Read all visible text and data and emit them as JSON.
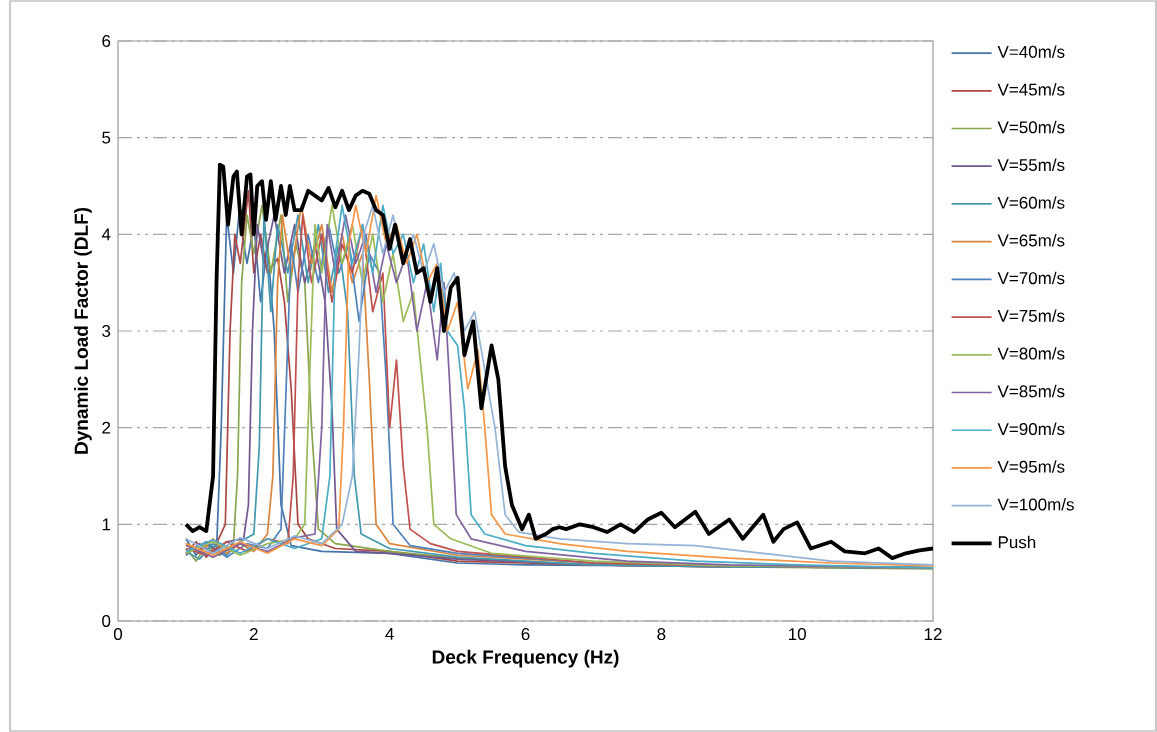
{
  "chart_data": {
    "type": "line",
    "xlabel": "Deck Frequency (Hz)",
    "ylabel": "Dynamic Load Factor (DLF)",
    "xlim": [
      0,
      12
    ],
    "xticks": [
      0,
      2,
      4,
      6,
      8,
      10,
      12
    ],
    "ylim": [
      0,
      6
    ],
    "yticks": [
      0,
      1,
      2,
      3,
      4,
      5,
      6
    ],
    "grid": "y",
    "legend": "right",
    "marker": "none",
    "line_style": "solid",
    "series": [
      {
        "name": "V=40m/s",
        "color": "#4572a7",
        "x": [
          1,
          1.15,
          1.3,
          1.45,
          1.52,
          1.6,
          1.7,
          1.78,
          1.9,
          2.0,
          2.1,
          2.2,
          2.3,
          2.4,
          2.55,
          3.0,
          4.0,
          5.0,
          6.0,
          8.0,
          10.0,
          12.0
        ],
        "values": [
          0.85,
          0.68,
          0.8,
          0.72,
          2.0,
          4.2,
          3.6,
          4.2,
          3.7,
          4.1,
          3.3,
          3.9,
          3.0,
          1.2,
          0.78,
          0.72,
          0.7,
          0.6,
          0.58,
          0.57,
          0.56,
          0.55
        ]
      },
      {
        "name": "V=45m/s",
        "color": "#aa4643",
        "x": [
          1,
          1.15,
          1.3,
          1.45,
          1.58,
          1.65,
          1.72,
          1.8,
          1.92,
          2.0,
          2.1,
          2.2,
          2.35,
          2.45,
          2.55,
          2.65,
          2.8,
          3.2,
          4.0,
          5.0,
          7.0,
          9.0,
          12.0
        ],
        "values": [
          0.7,
          0.82,
          0.66,
          0.8,
          1.0,
          3.0,
          4.0,
          3.7,
          4.45,
          3.6,
          4.0,
          3.6,
          3.75,
          3.3,
          2.4,
          1.0,
          0.85,
          0.75,
          0.72,
          0.62,
          0.58,
          0.56,
          0.55
        ]
      },
      {
        "name": "V=50m/s",
        "color": "#89a54e",
        "x": [
          1,
          1.15,
          1.3,
          1.5,
          1.7,
          1.76,
          1.82,
          1.9,
          2.0,
          2.12,
          2.25,
          2.4,
          2.5,
          2.62,
          2.75,
          2.85,
          2.95,
          3.2,
          4.0,
          5.0,
          7.0,
          9.0,
          12.0
        ],
        "values": [
          0.75,
          0.62,
          0.78,
          0.68,
          0.8,
          1.5,
          3.5,
          4.2,
          3.8,
          4.3,
          3.6,
          4.2,
          3.3,
          3.9,
          3.5,
          2.0,
          0.95,
          0.8,
          0.72,
          0.65,
          0.58,
          0.56,
          0.54
        ]
      },
      {
        "name": "V=55m/s",
        "color": "#71588f",
        "x": [
          1,
          1.2,
          1.4,
          1.6,
          1.85,
          1.92,
          1.98,
          2.05,
          2.15,
          2.3,
          2.45,
          2.6,
          2.75,
          2.9,
          3.05,
          3.15,
          3.22,
          3.5,
          4.0,
          5.0,
          7.0,
          9.0,
          12.0
        ],
        "values": [
          0.68,
          0.8,
          0.7,
          0.82,
          0.85,
          1.2,
          3.0,
          4.1,
          3.7,
          4.2,
          3.6,
          4.1,
          3.5,
          3.9,
          3.3,
          2.2,
          0.95,
          0.72,
          0.7,
          0.64,
          0.58,
          0.56,
          0.55
        ]
      },
      {
        "name": "V=60m/s",
        "color": "#4198af",
        "x": [
          1,
          1.2,
          1.4,
          1.6,
          1.8,
          2.0,
          2.08,
          2.15,
          2.25,
          2.35,
          2.5,
          2.65,
          2.8,
          2.95,
          3.1,
          3.25,
          3.38,
          3.48,
          3.58,
          4.0,
          5.0,
          7.0,
          9.0,
          12.0
        ],
        "values": [
          0.72,
          0.64,
          0.8,
          0.68,
          0.82,
          0.9,
          1.8,
          4.2,
          3.2,
          4.1,
          3.6,
          4.2,
          3.5,
          4.1,
          3.4,
          3.9,
          3.2,
          1.5,
          0.9,
          0.75,
          0.66,
          0.58,
          0.56,
          0.55
        ]
      },
      {
        "name": "V=65m/s",
        "color": "#db843d",
        "x": [
          1,
          1.2,
          1.4,
          1.6,
          1.8,
          2.0,
          2.2,
          2.28,
          2.35,
          2.42,
          2.55,
          2.7,
          2.85,
          3.0,
          3.15,
          3.3,
          3.45,
          3.6,
          3.7,
          3.8,
          4.0,
          5.0,
          7.0,
          9.0,
          12.0
        ],
        "values": [
          0.8,
          0.7,
          0.85,
          0.7,
          0.8,
          0.72,
          0.9,
          1.5,
          3.5,
          4.2,
          3.6,
          4.3,
          3.7,
          4.1,
          3.4,
          4.0,
          3.5,
          3.8,
          2.5,
          1.0,
          0.8,
          0.68,
          0.6,
          0.57,
          0.55
        ]
      },
      {
        "name": "V=70m/s",
        "color": "#4f81bd",
        "x": [
          1,
          1.3,
          1.6,
          1.9,
          2.2,
          2.4,
          2.48,
          2.55,
          2.65,
          2.8,
          2.95,
          3.1,
          3.25,
          3.4,
          3.55,
          3.7,
          3.85,
          3.95,
          4.05,
          4.3,
          5.0,
          7.0,
          9.0,
          12.0
        ],
        "values": [
          0.7,
          0.82,
          0.66,
          0.8,
          0.75,
          0.95,
          2.5,
          3.9,
          3.4,
          4.0,
          3.5,
          4.1,
          3.6,
          3.9,
          3.1,
          3.8,
          3.6,
          2.5,
          1.0,
          0.78,
          0.7,
          0.6,
          0.57,
          0.55
        ]
      },
      {
        "name": "V=75m/s",
        "color": "#c0504d",
        "x": [
          1,
          1.3,
          1.6,
          1.9,
          2.2,
          2.5,
          2.58,
          2.65,
          2.72,
          2.85,
          3.0,
          3.15,
          3.3,
          3.45,
          3.6,
          3.75,
          3.9,
          4.0,
          4.1,
          4.2,
          4.3,
          4.6,
          5.0,
          7.0,
          9.0,
          12.0
        ],
        "values": [
          0.75,
          0.68,
          0.82,
          0.72,
          0.85,
          0.8,
          1.5,
          3.5,
          4.2,
          3.5,
          4.0,
          3.3,
          3.9,
          3.6,
          4.1,
          3.2,
          3.6,
          2.0,
          2.7,
          1.6,
          0.95,
          0.8,
          0.72,
          0.6,
          0.57,
          0.55
        ]
      },
      {
        "name": "V=80m/s",
        "color": "#9bbb59",
        "x": [
          1,
          1.4,
          1.8,
          2.2,
          2.6,
          2.75,
          2.82,
          2.9,
          3.0,
          3.15,
          3.3,
          3.45,
          3.6,
          3.75,
          3.9,
          4.05,
          4.2,
          4.35,
          4.45,
          4.55,
          4.65,
          4.9,
          5.5,
          7.0,
          9.0,
          12.0
        ],
        "values": [
          0.7,
          0.82,
          0.68,
          0.8,
          0.85,
          1.0,
          2.5,
          4.1,
          3.6,
          4.3,
          3.7,
          4.1,
          3.5,
          4.0,
          3.3,
          3.8,
          3.1,
          3.4,
          2.7,
          2.0,
          1.0,
          0.85,
          0.7,
          0.62,
          0.57,
          0.55
        ]
      },
      {
        "name": "V=85m/s",
        "color": "#8064a2",
        "x": [
          1,
          1.4,
          1.8,
          2.2,
          2.6,
          2.9,
          3.0,
          3.08,
          3.2,
          3.35,
          3.5,
          3.65,
          3.8,
          3.95,
          4.1,
          4.25,
          4.4,
          4.55,
          4.7,
          4.8,
          4.88,
          4.98,
          5.2,
          6.0,
          7.5,
          9.0,
          12.0
        ],
        "values": [
          0.78,
          0.66,
          0.8,
          0.72,
          0.86,
          0.9,
          2.0,
          4.1,
          3.6,
          4.2,
          3.7,
          4.0,
          3.4,
          3.9,
          3.5,
          3.8,
          3.0,
          3.5,
          2.7,
          3.5,
          2.5,
          1.1,
          0.85,
          0.72,
          0.62,
          0.58,
          0.55
        ]
      },
      {
        "name": "V=90m/s",
        "color": "#4bacc6",
        "x": [
          1,
          1.4,
          1.8,
          2.2,
          2.6,
          3.0,
          3.12,
          3.2,
          3.3,
          3.45,
          3.6,
          3.75,
          3.9,
          4.05,
          4.2,
          4.35,
          4.5,
          4.65,
          4.75,
          4.85,
          5.0,
          5.1,
          5.2,
          5.4,
          6.0,
          7.0,
          8.5,
          10.0,
          12.0
        ],
        "values": [
          0.72,
          0.84,
          0.7,
          0.85,
          0.75,
          0.85,
          1.5,
          3.8,
          4.3,
          3.7,
          4.1,
          3.6,
          4.3,
          3.8,
          4.0,
          3.5,
          3.9,
          3.2,
          3.7,
          3.0,
          2.85,
          2.2,
          1.1,
          0.9,
          0.78,
          0.7,
          0.62,
          0.58,
          0.55
        ]
      },
      {
        "name": "V=95m/s",
        "color": "#f79646",
        "x": [
          1,
          1.4,
          1.8,
          2.2,
          2.6,
          3.0,
          3.25,
          3.32,
          3.4,
          3.5,
          3.65,
          3.8,
          3.95,
          4.1,
          4.25,
          4.4,
          4.55,
          4.7,
          4.85,
          5.0,
          5.15,
          5.3,
          5.4,
          5.5,
          5.7,
          6.5,
          7.5,
          9.0,
          10.5,
          12.0
        ],
        "values": [
          0.8,
          0.68,
          0.82,
          0.7,
          0.85,
          0.78,
          0.95,
          2.0,
          3.9,
          4.3,
          3.8,
          4.4,
          3.9,
          4.1,
          3.7,
          4.0,
          3.5,
          3.7,
          3.0,
          3.3,
          2.4,
          2.8,
          2.0,
          1.1,
          0.9,
          0.8,
          0.72,
          0.65,
          0.6,
          0.57
        ]
      },
      {
        "name": "V=100m/s",
        "color": "#95b3d7",
        "x": [
          1,
          1.4,
          1.8,
          2.2,
          2.6,
          3.0,
          3.3,
          3.45,
          3.55,
          3.62,
          3.75,
          3.9,
          4.05,
          4.2,
          4.35,
          4.5,
          4.65,
          4.8,
          4.95,
          5.1,
          5.25,
          5.4,
          5.55,
          5.7,
          5.9,
          6.5,
          7.5,
          8.5,
          9.5,
          10.5,
          12.0
        ],
        "values": [
          0.85,
          0.7,
          0.86,
          0.75,
          0.88,
          0.8,
          1.0,
          1.5,
          2.8,
          4.0,
          4.3,
          3.8,
          4.2,
          3.7,
          4.0,
          3.6,
          3.9,
          3.4,
          3.6,
          3.0,
          3.2,
          2.6,
          2.0,
          1.1,
          0.92,
          0.85,
          0.8,
          0.78,
          0.7,
          0.62,
          0.58
        ]
      },
      {
        "name": "Push",
        "color": "#000000",
        "x": [
          1.0,
          1.1,
          1.2,
          1.3,
          1.4,
          1.45,
          1.5,
          1.55,
          1.62,
          1.7,
          1.75,
          1.82,
          1.9,
          1.95,
          2.0,
          2.05,
          2.12,
          2.18,
          2.25,
          2.32,
          2.4,
          2.47,
          2.53,
          2.6,
          2.7,
          2.8,
          2.9,
          3.0,
          3.1,
          3.2,
          3.3,
          3.4,
          3.5,
          3.6,
          3.7,
          3.8,
          3.9,
          4.0,
          4.08,
          4.2,
          4.3,
          4.4,
          4.5,
          4.6,
          4.7,
          4.8,
          4.9,
          5.0,
          5.1,
          5.23,
          5.35,
          5.5,
          5.6,
          5.7,
          5.8,
          5.95,
          6.05,
          6.15,
          6.3,
          6.4,
          6.5,
          6.6,
          6.8,
          7.0,
          7.2,
          7.4,
          7.6,
          7.8,
          8.0,
          8.2,
          8.5,
          8.7,
          9.0,
          9.2,
          9.5,
          9.65,
          9.8,
          10.0,
          10.2,
          10.5,
          10.7,
          11.0,
          11.2,
          11.4,
          11.6,
          11.8,
          12.0
        ],
        "values": [
          1.0,
          0.93,
          0.97,
          0.93,
          1.5,
          3.5,
          4.72,
          4.7,
          4.1,
          4.6,
          4.65,
          4.0,
          4.6,
          4.62,
          4.0,
          4.5,
          4.55,
          4.15,
          4.55,
          4.15,
          4.5,
          4.2,
          4.5,
          4.25,
          4.25,
          4.45,
          4.4,
          4.35,
          4.48,
          4.28,
          4.45,
          4.25,
          4.4,
          4.45,
          4.42,
          4.25,
          4.2,
          3.85,
          4.1,
          3.7,
          3.95,
          3.6,
          3.65,
          3.3,
          3.65,
          3.0,
          3.45,
          3.55,
          2.75,
          3.1,
          2.2,
          2.85,
          2.5,
          1.6,
          1.2,
          0.95,
          1.1,
          0.85,
          0.9,
          0.95,
          0.97,
          0.95,
          1.0,
          0.97,
          0.92,
          1.0,
          0.92,
          1.05,
          1.12,
          0.97,
          1.13,
          0.9,
          1.05,
          0.85,
          1.1,
          0.82,
          0.95,
          1.02,
          0.75,
          0.82,
          0.72,
          0.7,
          0.75,
          0.65,
          0.7,
          0.73,
          0.75
        ]
      }
    ]
  }
}
